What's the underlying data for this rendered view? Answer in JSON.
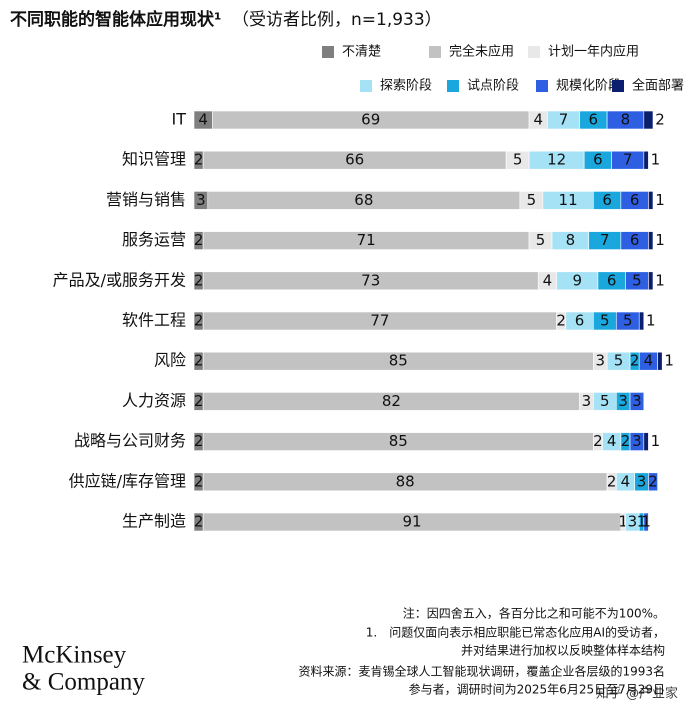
{
  "chart_data": {
    "type": "stacked-bar-horizontal",
    "title": "不同职能的智能体应用现状¹",
    "subtitle": "（受访者比例，n=1,933）",
    "categories": [
      "IT",
      "知识管理",
      "营销与销售",
      "服务运营",
      "产品及/或服务开发",
      "软件工程",
      "风险",
      "人力资源",
      "战略与公司财务",
      "供应链/库存管理",
      "生产制造"
    ],
    "xlim": [
      0,
      100
    ],
    "series": [
      {
        "name": "不清楚",
        "color": "#7f7f7f",
        "values": [
          4,
          2,
          3,
          2,
          2,
          2,
          2,
          2,
          2,
          2,
          2
        ]
      },
      {
        "name": "完全未应用",
        "color": "#c2c2c2",
        "values": [
          69,
          66,
          68,
          71,
          73,
          77,
          85,
          82,
          85,
          88,
          91
        ]
      },
      {
        "name": "计划一年内应用",
        "color": "#e8e8e8",
        "values": [
          4,
          5,
          5,
          5,
          4,
          2,
          3,
          3,
          2,
          2,
          1
        ]
      },
      {
        "name": "探索阶段",
        "color": "#a6e2f5",
        "values": [
          7,
          12,
          11,
          8,
          9,
          6,
          5,
          5,
          4,
          4,
          3
        ]
      },
      {
        "name": "试点阶段",
        "color": "#1aa7dd",
        "values": [
          6,
          6,
          6,
          7,
          6,
          5,
          2,
          3,
          2,
          3,
          1
        ]
      },
      {
        "name": "规模化阶段",
        "color": "#2e5fe3",
        "values": [
          8,
          7,
          6,
          6,
          5,
          5,
          4,
          3,
          3,
          2,
          1
        ]
      },
      {
        "name": "全面部署",
        "color": "#0b1f6e",
        "values": [
          2,
          1,
          1,
          1,
          1,
          1,
          1,
          null,
          1,
          null,
          null
        ]
      }
    ],
    "notes": [
      "注：因四舍五入，各百分比之和可能不为100%。",
      "1.　问题仅面向表示相应职能已常态化应用AI的受访者，",
      "并对结果进行加权以反映整体样本结构",
      "资料来源：麦肯锡全球人工智能现状调研，覆盖企业各层级的1993名",
      "参与者，调研时间为2025年6月25日至7月29日"
    ],
    "logo": [
      "McKinsey",
      "& Company"
    ],
    "watermark": "知乎 @产业家"
  }
}
